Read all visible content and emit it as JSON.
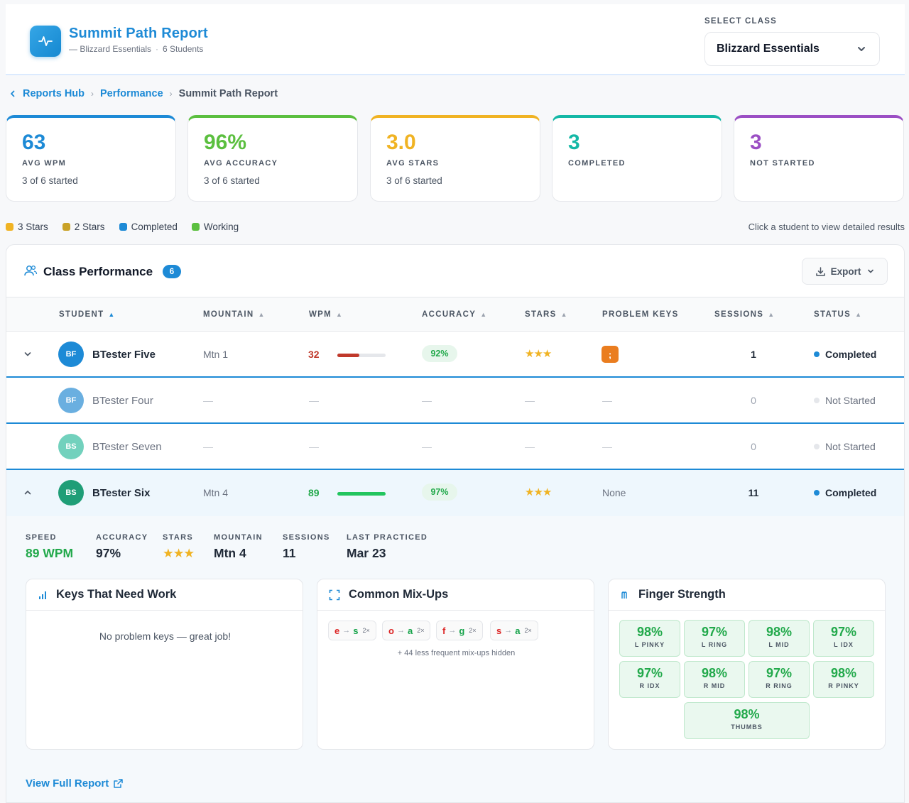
{
  "header": {
    "title": "Summit Path Report",
    "subtitle_class": "— Blizzard Essentials",
    "subtitle_sep": "·",
    "subtitle_students": "6 Students",
    "select_label": "SELECT CLASS",
    "select_value": "Blizzard Essentials"
  },
  "breadcrumb": [
    "Reports Hub",
    "Performance",
    "Summit Path Report"
  ],
  "stats": [
    {
      "value": "63",
      "label": "AVG WPM",
      "sub": "3 of 6 started",
      "color": "#1d8ad6"
    },
    {
      "value": "96%",
      "label": "AVG ACCURACY",
      "sub": "3 of 6 started",
      "color": "#5bbf3f"
    },
    {
      "value": "3.0",
      "label": "AVG STARS",
      "sub": "3 of 6 started",
      "color": "#f0b323"
    },
    {
      "value": "3",
      "label": "COMPLETED",
      "sub": "",
      "color": "#14b8a6"
    },
    {
      "value": "3",
      "label": "NOT STARTED",
      "sub": "",
      "color": "#9b4fc4"
    }
  ],
  "legend": [
    {
      "label": "3 Stars",
      "color": "#f0b323"
    },
    {
      "label": "2 Stars",
      "color": "#c9a227"
    },
    {
      "label": "Completed",
      "color": "#1d8ad6"
    },
    {
      "label": "Working",
      "color": "#5bbf3f"
    }
  ],
  "hint": "Click a student to view detailed results",
  "panel": {
    "title": "Class Performance",
    "count": "6",
    "export_label": "Export"
  },
  "columns": [
    "STUDENT",
    "MOUNTAIN",
    "WPM",
    "ACCURACY",
    "STARS",
    "PROBLEM KEYS",
    "SESSIONS",
    "STATUS"
  ],
  "dash": "—",
  "rows": [
    {
      "initials": "BF",
      "name": "BTester Five",
      "mountain": "Mtn 1",
      "wpm": "32",
      "wpm_fraction": 0.45,
      "accuracy": "92%",
      "stars": "★★★",
      "problem_key": ";",
      "sessions": "1",
      "status": "Completed"
    },
    {
      "initials": "BF",
      "name": "BTester Four",
      "sessions": "0",
      "status": "Not Started"
    },
    {
      "initials": "BS",
      "name": "BTester Seven",
      "sessions": "0",
      "status": "Not Started"
    },
    {
      "initials": "BS",
      "name": "BTester Six",
      "mountain": "Mtn 4",
      "wpm": "89",
      "wpm_fraction": 1.0,
      "accuracy": "97%",
      "stars": "★★★",
      "problem_keys_text": "None",
      "sessions": "11",
      "status": "Completed"
    }
  ],
  "detail": {
    "stats": [
      {
        "label": "SPEED",
        "value": "89 WPM"
      },
      {
        "label": "ACCURACY",
        "value": "97%"
      },
      {
        "label": "STARS",
        "value": "★★★"
      },
      {
        "label": "MOUNTAIN",
        "value": "Mtn 4"
      },
      {
        "label": "SESSIONS",
        "value": "11"
      },
      {
        "label": "LAST PRACTICED",
        "value": "Mar 23"
      }
    ],
    "keys_title": "Keys That Need Work",
    "keys_empty": "No problem keys — great job!",
    "mix_title": "Common Mix-Ups",
    "mixups": [
      {
        "from": "e",
        "to": "s",
        "count": "2×"
      },
      {
        "from": "o",
        "to": "a",
        "count": "2×"
      },
      {
        "from": "f",
        "to": "g",
        "count": "2×"
      },
      {
        "from": "s",
        "to": "a",
        "count": "2×"
      }
    ],
    "mix_arrow": "→",
    "mix_note": "+ 44 less frequent mix-ups hidden",
    "finger_title": "Finger Strength",
    "fingers": [
      {
        "value": "98%",
        "label": "L PINKY"
      },
      {
        "value": "97%",
        "label": "L RING"
      },
      {
        "value": "98%",
        "label": "L MID"
      },
      {
        "value": "97%",
        "label": "L IDX"
      },
      {
        "value": "97%",
        "label": "R IDX"
      },
      {
        "value": "98%",
        "label": "R MID"
      },
      {
        "value": "97%",
        "label": "R RING"
      },
      {
        "value": "98%",
        "label": "R PINKY"
      },
      {
        "value": "98%",
        "label": "THUMBS"
      }
    ],
    "view_full": "View Full Report"
  }
}
